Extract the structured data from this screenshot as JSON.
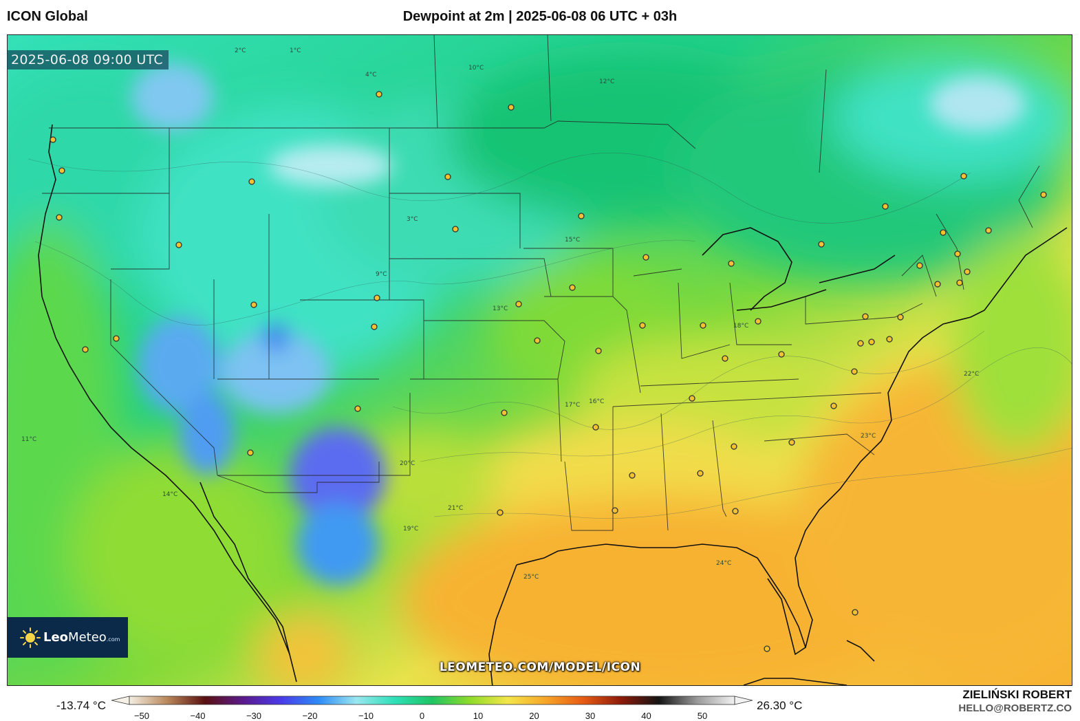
{
  "header": {
    "model_name": "ICON Global",
    "title": "Dewpoint at 2m | 2025-06-08 06 UTC + 03h"
  },
  "map": {
    "valid_time": "2025-06-08 09:00 UTC",
    "watermark": "LEOMETEO.COM/MODEL/ICON",
    "contour_labels": [
      "2°C",
      "1°C",
      "4°C",
      "10°C",
      "12°C",
      "3°C",
      "9°C",
      "13°C",
      "15°C",
      "16°C",
      "17°C",
      "18°C",
      "20°C",
      "21°C",
      "22°C",
      "23°C",
      "24°C",
      "25°C",
      "11°C",
      "14°C",
      "19°C"
    ],
    "colors": {
      "cold_blue": "#3a7bf0",
      "cyan": "#3fe2c4",
      "green": "#2fcf73",
      "lime": "#a6e02a",
      "yellow": "#f2e15a",
      "orange": "#f7b233"
    }
  },
  "logo": {
    "brand_bold": "Leo",
    "brand_rest": "Meteo",
    "brand_suffix": ".com",
    "icon": "sun-icon"
  },
  "colorbar": {
    "min_value": "-13.74 °C",
    "max_value": "26.30 °C",
    "ticks": [
      "−50",
      "−40",
      "−30",
      "−20",
      "−10",
      "0",
      "10",
      "20",
      "30",
      "40",
      "50"
    ],
    "gradient_colors": [
      "#f4efe4",
      "#b9875a",
      "#5a1010",
      "#5a1a8c",
      "#4a3ae8",
      "#2d8cf5",
      "#9be6f0",
      "#2ee0b8",
      "#1fc463",
      "#8fdc2a",
      "#f4e64a",
      "#f7a528",
      "#e65a14",
      "#8c1a0a",
      "#141414",
      "#9a9a9a",
      "#f2f2f2"
    ]
  },
  "author": {
    "name": "ZIELIŃSKI ROBERT",
    "email": "HELLO@ROBERTZ.CO"
  }
}
